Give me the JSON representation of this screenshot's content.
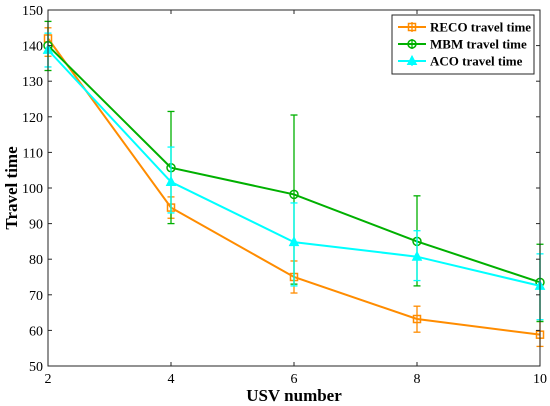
{
  "chart_data": {
    "type": "line",
    "xlabel": "USV number",
    "ylabel": "Travel time",
    "x": [
      2,
      4,
      6,
      8,
      10
    ],
    "xticks": [
      2,
      4,
      6,
      8,
      10
    ],
    "yticks": [
      50,
      60,
      70,
      80,
      90,
      100,
      110,
      120,
      130,
      140,
      150
    ],
    "xlim": [
      2,
      10
    ],
    "ylim": [
      50,
      150
    ],
    "grid": false,
    "legend_position": "top-right",
    "series": [
      {
        "name": "RECO travel time",
        "color": "#FF8C00",
        "marker": "square",
        "values": [
          142,
          94.5,
          75,
          63.2,
          58.8
        ],
        "err_low": [
          137,
          91.5,
          70.5,
          59.5,
          55.5
        ],
        "err_high": [
          145,
          97.5,
          79.5,
          66.8,
          62.5
        ]
      },
      {
        "name": "MBM travel time",
        "color": "#00B000",
        "marker": "circle",
        "values": [
          140,
          105.7,
          98.2,
          85,
          73.5
        ],
        "err_low": [
          133,
          90,
          73,
          72.5,
          62.5
        ],
        "err_high": [
          146.8,
          121.5,
          120.5,
          97.8,
          84.2
        ]
      },
      {
        "name": "ACO travel time",
        "color": "#00FFFF",
        "marker": "triangle",
        "values": [
          138.8,
          101.7,
          84.8,
          80.7,
          72.5
        ],
        "err_low": [
          134,
          93,
          72.5,
          74,
          63
        ],
        "err_high": [
          143.5,
          111.5,
          95.8,
          88,
          81.5
        ]
      }
    ]
  }
}
